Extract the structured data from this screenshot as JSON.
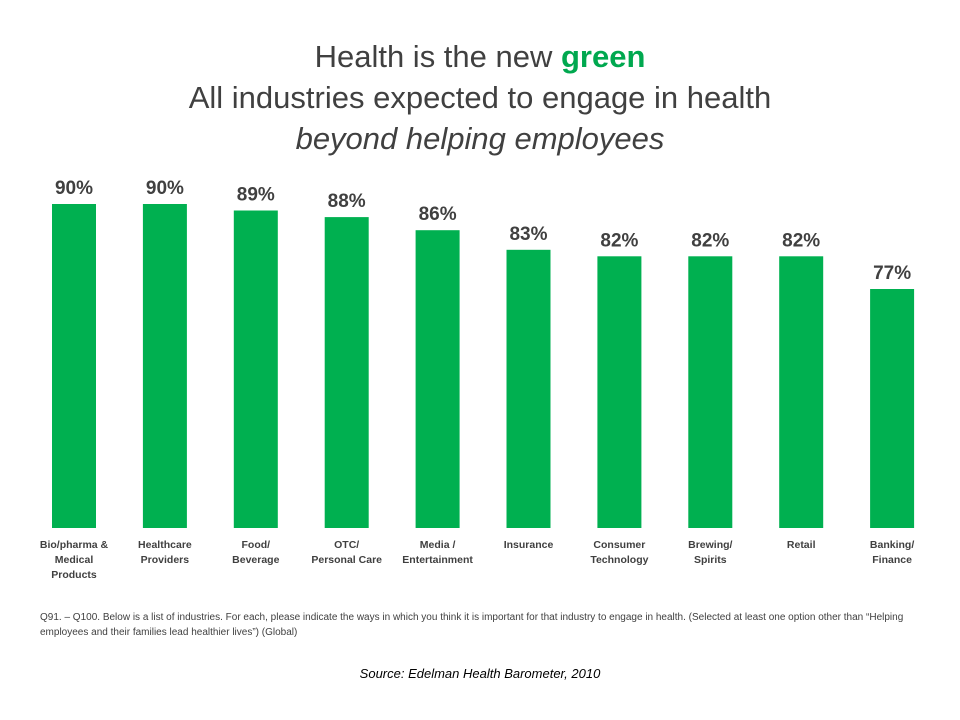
{
  "title": {
    "line1_prefix": "Health is the new ",
    "line1_highlight": "green",
    "line2": "All industries expected to engage in health",
    "line3": "beyond helping employees"
  },
  "colors": {
    "bar": "#00b050",
    "highlight": "#00a84f",
    "text": "#404040"
  },
  "chart_data": {
    "type": "bar",
    "categories": [
      [
        "Bio/pharma &",
        "Medical",
        "Products"
      ],
      [
        "Healthcare",
        "Providers"
      ],
      [
        "Food/",
        "Beverage"
      ],
      [
        "OTC/",
        "Personal Care"
      ],
      [
        "Media /",
        "Entertainment"
      ],
      [
        "Insurance"
      ],
      [
        "Consumer",
        "Technology"
      ],
      [
        "Brewing/",
        "Spirits"
      ],
      [
        "Retail"
      ],
      [
        "Banking/",
        "Finance"
      ]
    ],
    "values": [
      90,
      90,
      89,
      88,
      86,
      83,
      82,
      82,
      82,
      77
    ],
    "data_labels": [
      "90%",
      "90%",
      "89%",
      "88%",
      "86%",
      "83%",
      "82%",
      "82%",
      "82%",
      "77%"
    ],
    "ylim": [
      0,
      100
    ],
    "grid": false,
    "legend": "none"
  },
  "note": "Q91. – Q100. Below is a list of industries. For each, please indicate the ways in which you think it is important for that industry to engage in health. (Selected at least one option other than “Helping employees and their families lead healthier lives”) (Global)",
  "source": "Source: Edelman Health Barometer, 2010"
}
